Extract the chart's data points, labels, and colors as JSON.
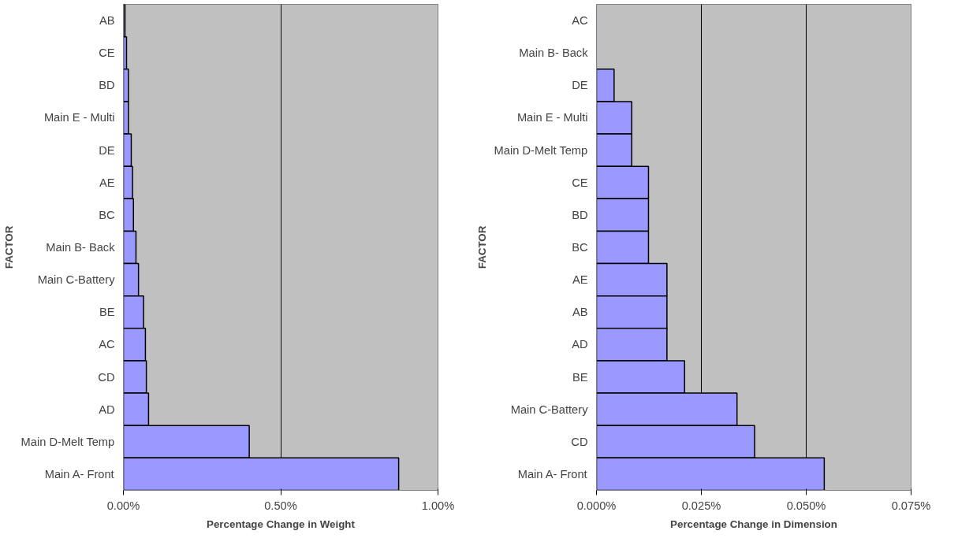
{
  "chart_data": [
    {
      "type": "bar",
      "orientation": "horizontal",
      "xlabel": "Percentage Change in Weight",
      "ylabel": "FACTOR",
      "categories": [
        "AB",
        "CE",
        "BD",
        "Main E - Multi",
        "DE",
        "AE",
        "BC",
        "Main B- Back",
        "Main C-Battery",
        "BE",
        "AC",
        "CD",
        "AD",
        "Main D-Melt Temp",
        "Main A- Front"
      ],
      "values": [
        0.005,
        0.01,
        0.016,
        0.016,
        0.025,
        0.029,
        0.032,
        0.04,
        0.048,
        0.064,
        0.07,
        0.073,
        0.08,
        0.4,
        0.875
      ],
      "color": "#9999ff",
      "xlim": [
        0,
        1
      ],
      "xticks": [
        {
          "value": 0,
          "label": "0.00%"
        },
        {
          "value": 0.5,
          "label": "0.50%"
        },
        {
          "value": 1,
          "label": "1.00%"
        }
      ],
      "grid": "x"
    },
    {
      "type": "bar",
      "orientation": "horizontal",
      "xlabel": "Percentage Change in Dimension",
      "ylabel": "FACTOR",
      "categories": [
        "AC",
        "Main B- Back",
        "DE",
        "Main E - Multi",
        "Main D-Melt Temp",
        "CE",
        "BD",
        "BC",
        "AE",
        "AB",
        "AD",
        "BE",
        "Main C-Battery",
        "CD",
        "Main A- Front"
      ],
      "values": [
        0,
        0,
        0.0042,
        0.0084,
        0.0084,
        0.0124,
        0.0124,
        0.0124,
        0.0168,
        0.0168,
        0.0168,
        0.021,
        0.0335,
        0.0377,
        0.0543
      ],
      "color": "#9999ff",
      "xlim": [
        0,
        0.075
      ],
      "xticks": [
        {
          "value": 0,
          "label": "0.000%"
        },
        {
          "value": 0.025,
          "label": "0.025%"
        },
        {
          "value": 0.05,
          "label": "0.050%"
        },
        {
          "value": 0.075,
          "label": "0.075%"
        }
      ],
      "grid": "x"
    }
  ]
}
